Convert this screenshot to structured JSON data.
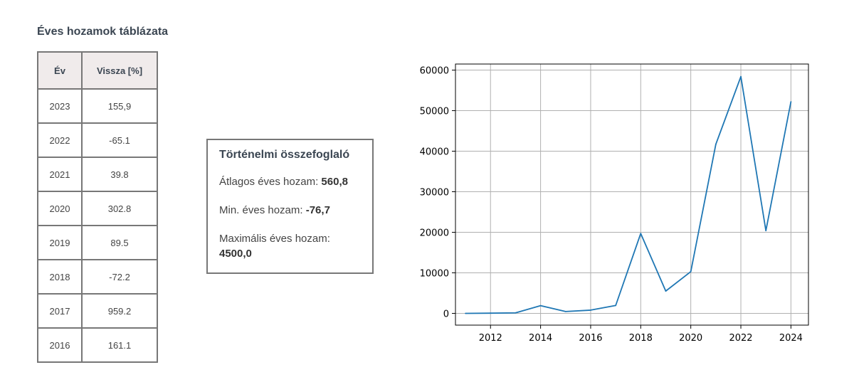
{
  "table": {
    "title": "Éves hozamok táblázata",
    "headers": [
      "Év",
      "Vissza [%]"
    ],
    "rows": [
      {
        "year": "2023",
        "value": "155,9"
      },
      {
        "year": "2022",
        "value": "-65.1"
      },
      {
        "year": "2021",
        "value": "39.8"
      },
      {
        "year": "2020",
        "value": "302.8"
      },
      {
        "year": "2019",
        "value": "89.5"
      },
      {
        "year": "2018",
        "value": "-72.2"
      },
      {
        "year": "2017",
        "value": "959.2"
      },
      {
        "year": "2016",
        "value": "161.1"
      }
    ]
  },
  "summary": {
    "title": "Történelmi összefoglaló",
    "avg_label": "Átlagos éves hozam:",
    "avg_value": "560,8",
    "min_label": "Min. éves hozam:",
    "min_value": "-76,7",
    "max_label": "Maximális éves hozam:",
    "max_value": "4500,0"
  },
  "chart_data": {
    "type": "line",
    "x": [
      2011,
      2012,
      2013,
      2014,
      2015,
      2016,
      2017,
      2018,
      2019,
      2020,
      2021,
      2022,
      2023,
      2024
    ],
    "series": [
      {
        "values": [
          0,
          50,
          130,
          1900,
          450,
          800,
          1950,
          19700,
          5500,
          10300,
          41700,
          58400,
          20400,
          52200
        ],
        "color": "#1f77b4"
      }
    ],
    "xlim": [
      2010.6,
      2024.7
    ],
    "ylim": [
      -2900,
      61500
    ],
    "xticks": [
      2012,
      2014,
      2016,
      2018,
      2020,
      2022,
      2024
    ],
    "yticks": [
      0,
      10000,
      20000,
      30000,
      40000,
      50000,
      60000
    ],
    "grid": true,
    "title": "",
    "xlabel": "",
    "ylabel": ""
  }
}
